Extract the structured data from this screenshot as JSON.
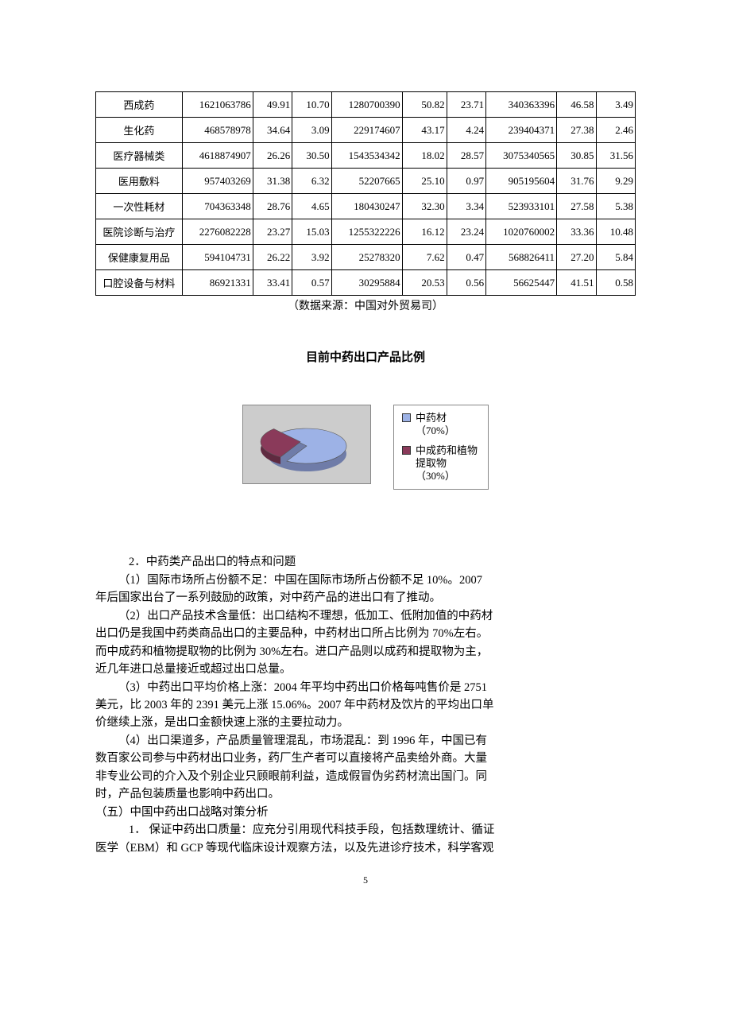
{
  "table": {
    "col_widths_pct": [
      16.5,
      13.5,
      7.5,
      7.5,
      13.5,
      8.5,
      7.5,
      13.5,
      7.5,
      7.5
    ],
    "rows": [
      [
        "西成药",
        "1621063786",
        "49.91",
        "10.70",
        "1280700390",
        "50.82",
        "23.71",
        "340363396",
        "46.58",
        "3.49"
      ],
      [
        "生化药",
        "468578978",
        "34.64",
        "3.09",
        "229174607",
        "43.17",
        "4.24",
        "239404371",
        "27.38",
        "2.46"
      ],
      [
        "医疗器械类",
        "4618874907",
        "26.26",
        "30.50",
        "1543534342",
        "18.02",
        "28.57",
        "3075340565",
        "30.85",
        "31.56"
      ],
      [
        "医用敷料",
        "957403269",
        "31.38",
        "6.32",
        "52207665",
        "25.10",
        "0.97",
        "905195604",
        "31.76",
        "9.29"
      ],
      [
        "一次性耗材",
        "704363348",
        "28.76",
        "4.65",
        "180430247",
        "32.30",
        "3.34",
        "523933101",
        "27.58",
        "5.38"
      ],
      [
        "医院诊断与治疗",
        "2276082228",
        "23.27",
        "15.03",
        "1255322226",
        "16.12",
        "23.24",
        "1020760002",
        "33.36",
        "10.48"
      ],
      [
        "保健康复用品",
        "594104731",
        "26.22",
        "3.92",
        "25278320",
        "7.62",
        "0.47",
        "568826411",
        "27.20",
        "5.84"
      ],
      [
        "口腔设备与材料",
        "86921331",
        "33.41",
        "0.57",
        "30295884",
        "20.53",
        "0.56",
        "56625447",
        "41.51",
        "0.58"
      ]
    ]
  },
  "source_note": "（数据来源：中国对外贸易司）",
  "chart": {
    "title": "目前中药出口产品比例",
    "type": "pie",
    "background_color": "#cccccc",
    "border_color": "#888888",
    "slices": [
      {
        "label": "中药材（70%）",
        "value": 70,
        "color": "#9db2e6"
      },
      {
        "label": "中成药和植物提取物（30%）",
        "value": 30,
        "color": "#8a3a5a"
      }
    ],
    "legend_items": [
      {
        "swatch": "#9db2e6",
        "text_line1": "中药材",
        "text_line2": "（70%）"
      },
      {
        "swatch": "#8a3a5a",
        "text_line1": "中成药和植物",
        "text_line2": "提取物",
        "text_line3": "（30%）"
      }
    ]
  },
  "body": {
    "p1": "2．中药类产品出口的特点和问题",
    "p2": "（1）国际市场所占份额不足：中国在国际市场所占份额不足 10%。2007",
    "p3": "年后国家出台了一系列鼓励的政策，对中药产品的进出口有了推动。",
    "p4": "（2）出口产品技术含量低：出口结构不理想，低加工、低附加值的中药材",
    "p5": "出口仍是我国中药类商品出口的主要品种，中药材出口所占比例为 70%左右。",
    "p6": "而中成药和植物提取物的比例为 30%左右。进口产品则以成药和提取物为主，",
    "p7": "近几年进口总量接近或超过出口总量。",
    "p8": "（3）中药出口平均价格上涨：2004 年平均中药出口价格每吨售价是 2751",
    "p9": "美元，比 2003 年的 2391 美元上涨 15.06%。2007 年中药材及饮片的平均出口单",
    "p10": "价继续上涨，是出口金额快速上涨的主要拉动力。",
    "p11": "（4）出口渠道多，产品质量管理混乱，市场混乱：到 1996 年，中国已有",
    "p12": "数百家公司参与中药材出口业务，药厂生产者可以直接将产品卖给外商。大量",
    "p13": "非专业公司的介入及个别企业只顾眼前利益，造成假冒伪劣药材流出国门。同",
    "p14": "时，产品包装质量也影响中药出口。",
    "section_title": "（五）中国中药出口战略对策分析",
    "p15": "1．  保证中药出口质量：应充分引用现代科技手段，包括数理统计、循证",
    "p16": "医学（EBM）和 GCP 等现代临床设计观察方法，以及先进诊疗技术，科学客观"
  },
  "page_number": "5"
}
